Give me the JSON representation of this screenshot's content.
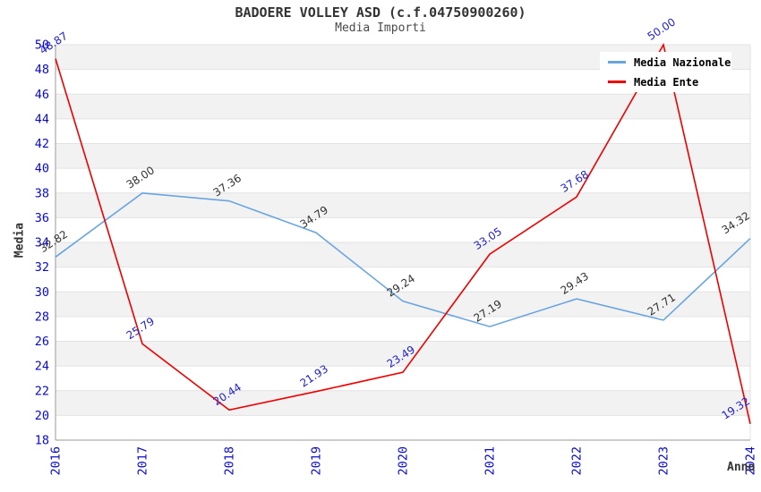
{
  "title": "BADOERE VOLLEY ASD (c.f.04750900260)",
  "subtitle": "Media Importi",
  "chart_data": {
    "type": "line",
    "x": [
      2016,
      2017,
      2018,
      2019,
      2020,
      2021,
      2022,
      2023,
      2024
    ],
    "series": [
      {
        "name": "Media Nazionale",
        "color": "#68A5DF",
        "label_color": "#333333",
        "values": [
          32.82,
          38.0,
          37.36,
          34.79,
          29.24,
          27.19,
          29.43,
          27.71,
          34.32
        ]
      },
      {
        "name": "Media Ente",
        "color": "#EE0000",
        "label_color": "#2222CC",
        "values": [
          48.87,
          25.79,
          20.44,
          21.93,
          23.49,
          33.05,
          37.68,
          50.0,
          19.32
        ]
      }
    ],
    "xlabel": "Anno",
    "ylabel": "Media",
    "ylim": [
      18,
      50
    ],
    "ytick_step": 2,
    "yticks": [
      18,
      20,
      22,
      24,
      26,
      28,
      30,
      32,
      34,
      36,
      38,
      40,
      42,
      44,
      46,
      48,
      50
    ],
    "grid": "horizontal-bands",
    "legend_position": "top-right",
    "tick_color": "#0909CF",
    "band_color": "#F2F2F2",
    "grid_color": "#E2E2E2",
    "axis_color": "#999999",
    "value_label_decimals": 2
  }
}
